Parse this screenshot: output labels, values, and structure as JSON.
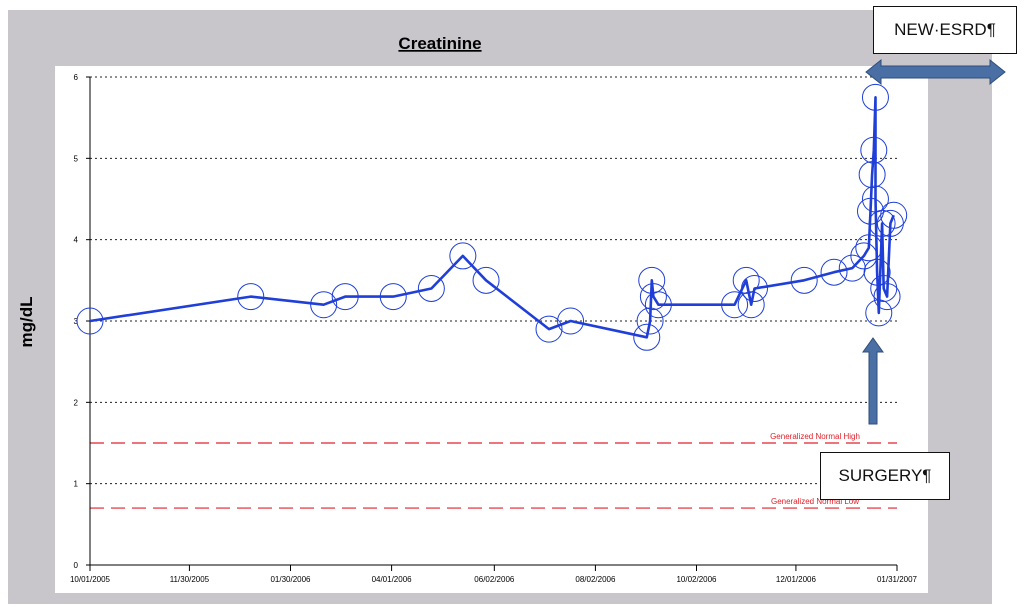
{
  "chart_data": {
    "type": "line",
    "title": "Creatinine",
    "ylabel": "mg/dL",
    "xlabel": "",
    "ylim": [
      0,
      6
    ],
    "yticks": [
      0,
      1,
      2,
      3,
      4,
      5,
      6
    ],
    "xlim": [
      "2005-10-01",
      "2007-01-31"
    ],
    "xticks": [
      {
        "date": "2005-10-01",
        "label": "10/01/2005"
      },
      {
        "date": "2005-11-30",
        "label": "11/30/2005"
      },
      {
        "date": "2006-01-30",
        "label": "01/30/2006"
      },
      {
        "date": "2006-04-01",
        "label": "04/01/2006"
      },
      {
        "date": "2006-06-02",
        "label": "06/02/2006"
      },
      {
        "date": "2006-08-02",
        "label": "08/02/2006"
      },
      {
        "date": "2006-10-02",
        "label": "10/02/2006"
      },
      {
        "date": "2006-12-01",
        "label": "12/01/2006"
      },
      {
        "date": "2007-01-31",
        "label": "01/31/2007"
      }
    ],
    "grid": "horizontal dotted",
    "reference_lines": [
      {
        "label": "Generalized Normal High",
        "y": 1.5,
        "color": "#e0202a"
      },
      {
        "label": "Generalized Normal Low",
        "y": 0.7,
        "color": "#e0202a"
      }
    ],
    "series": [
      {
        "color": "#1f3fd8",
        "points": [
          {
            "x": "2005-10-01",
            "y": 3.0
          },
          {
            "x": "2006-01-06",
            "y": 3.3
          },
          {
            "x": "2006-02-19",
            "y": 3.2
          },
          {
            "x": "2006-03-04",
            "y": 3.3
          },
          {
            "x": "2006-04-02",
            "y": 3.3
          },
          {
            "x": "2006-04-25",
            "y": 3.4
          },
          {
            "x": "2006-05-14",
            "y": 3.8
          },
          {
            "x": "2006-05-28",
            "y": 3.5
          },
          {
            "x": "2006-07-05",
            "y": 2.9
          },
          {
            "x": "2006-07-18",
            "y": 3.0
          },
          {
            "x": "2006-09-02",
            "y": 2.8
          },
          {
            "x": "2006-09-04",
            "y": 3.0
          },
          {
            "x": "2006-09-05",
            "y": 3.5
          },
          {
            "x": "2006-09-06",
            "y": 3.3
          },
          {
            "x": "2006-09-09",
            "y": 3.2
          },
          {
            "x": "2006-10-25",
            "y": 3.2
          },
          {
            "x": "2006-11-01",
            "y": 3.5
          },
          {
            "x": "2006-11-04",
            "y": 3.2
          },
          {
            "x": "2006-11-06",
            "y": 3.4
          },
          {
            "x": "2006-12-06",
            "y": 3.5
          },
          {
            "x": "2006-12-24",
            "y": 3.6
          },
          {
            "x": "2007-01-04",
            "y": 3.65
          },
          {
            "x": "2007-01-11",
            "y": 3.8
          },
          {
            "x": "2007-01-14",
            "y": 3.9
          },
          {
            "x": "2007-01-15",
            "y": 4.35
          },
          {
            "x": "2007-01-16",
            "y": 4.8
          },
          {
            "x": "2007-01-17",
            "y": 5.1
          },
          {
            "x": "2007-01-18",
            "y": 5.75
          },
          {
            "x": "2007-01-18",
            "y": 4.5
          },
          {
            "x": "2007-01-19",
            "y": 3.6
          },
          {
            "x": "2007-01-20",
            "y": 3.1
          },
          {
            "x": "2007-01-22",
            "y": 4.2
          },
          {
            "x": "2007-01-23",
            "y": 3.4
          },
          {
            "x": "2007-01-25",
            "y": 3.3
          },
          {
            "x": "2007-01-27",
            "y": 4.2
          },
          {
            "x": "2007-01-29",
            "y": 4.3
          }
        ]
      }
    ]
  },
  "annotations": {
    "esrd_label": "NEW·ESRD¶",
    "surgery_label": "SURGERY¶"
  },
  "colors": {
    "frame": "#c9c6cb",
    "plot_background": "#ffffff",
    "series_line": "#1f3fd8",
    "reference_line": "#e0202a",
    "annotation_arrow": "#4a6fa5"
  }
}
